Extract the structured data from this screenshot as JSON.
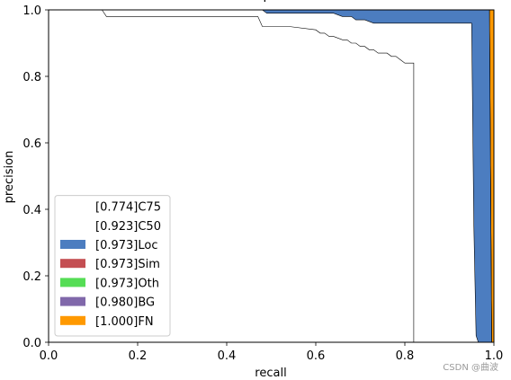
{
  "chart_data": {
    "type": "area",
    "title": "bbox-qx-diared",
    "xlabel": "recall",
    "ylabel": "precision",
    "xlim": [
      0,
      1
    ],
    "ylim": [
      0,
      1
    ],
    "xticks": [
      "0.0",
      "0.2",
      "0.4",
      "0.6",
      "0.8",
      "1.0"
    ],
    "yticks": [
      "0.0",
      "0.2",
      "0.4",
      "0.6",
      "0.8",
      "1.0"
    ],
    "grid": false,
    "legend_position": "lower-left",
    "series": [
      {
        "name": "[0.774]C75",
        "color": "#ffffff",
        "x": [
          0.0,
          0.12,
          0.13,
          0.47,
          0.48,
          0.54,
          0.6,
          0.61,
          0.62,
          0.63,
          0.64,
          0.66,
          0.67,
          0.68,
          0.69,
          0.7,
          0.71,
          0.72,
          0.73,
          0.74,
          0.75,
          0.76,
          0.77,
          0.78,
          0.79,
          0.8,
          0.81,
          0.82,
          0.82,
          1.0
        ],
        "y": [
          1.0,
          1.0,
          0.98,
          0.98,
          0.95,
          0.95,
          0.94,
          0.93,
          0.93,
          0.92,
          0.92,
          0.91,
          0.91,
          0.9,
          0.9,
          0.89,
          0.89,
          0.88,
          0.88,
          0.87,
          0.87,
          0.87,
          0.86,
          0.86,
          0.85,
          0.84,
          0.84,
          0.84,
          0.0,
          0.0
        ]
      },
      {
        "name": "[0.923]C50",
        "color": "#ffffff",
        "x": [
          0.0,
          0.48,
          0.49,
          0.64,
          0.66,
          0.68,
          0.69,
          0.71,
          0.73,
          0.95,
          0.955,
          0.96,
          0.965,
          1.0
        ],
        "y": [
          1.0,
          1.0,
          0.99,
          0.99,
          0.98,
          0.98,
          0.97,
          0.97,
          0.96,
          0.96,
          0.35,
          0.02,
          0.0,
          0.0
        ]
      },
      {
        "name": "[0.973]Loc",
        "color": "#4c7dc0",
        "x": [
          0.0,
          0.99,
          0.995,
          1.0
        ],
        "y": [
          1.0,
          1.0,
          0.0,
          0.0
        ]
      },
      {
        "name": "[0.973]Sim",
        "color": "#c44e52",
        "x": [
          0.0,
          0.99,
          0.995,
          1.0
        ],
        "y": [
          1.0,
          1.0,
          0.0,
          0.0
        ]
      },
      {
        "name": "[0.973]Oth",
        "color": "#55dd55",
        "x": [
          0.0,
          0.99,
          0.995,
          1.0
        ],
        "y": [
          1.0,
          1.0,
          0.0,
          0.0
        ]
      },
      {
        "name": "[0.980]BG",
        "color": "#8068aa",
        "x": [
          0.0,
          0.66,
          0.67,
          0.68,
          0.69,
          0.73,
          0.74,
          0.975,
          0.98,
          0.985,
          0.99,
          1.0
        ],
        "y": [
          1.0,
          1.0,
          1.0,
          0.995,
          0.995,
          0.995,
          0.99,
          0.99,
          0.985,
          0.4,
          0.0,
          0.0
        ]
      },
      {
        "name": "[1.000]FN",
        "color": "#ff9900",
        "x": [
          0.0,
          0.982,
          0.983,
          1.0
        ],
        "y": [
          1.0,
          1.0,
          1.0,
          1.0
        ]
      }
    ]
  },
  "watermark": "CSDN @曲波"
}
